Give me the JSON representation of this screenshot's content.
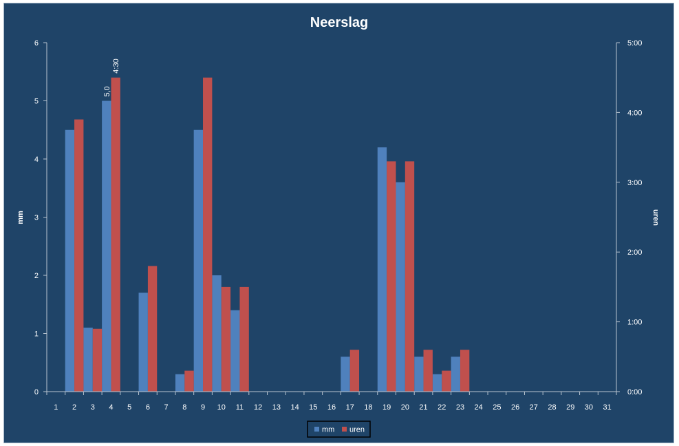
{
  "chart_data": {
    "type": "bar",
    "title": "Neerslag",
    "categories": [
      "1",
      "2",
      "3",
      "4",
      "5",
      "6",
      "7",
      "8",
      "9",
      "10",
      "11",
      "12",
      "13",
      "14",
      "15",
      "16",
      "17",
      "18",
      "19",
      "20",
      "21",
      "22",
      "23",
      "24",
      "25",
      "26",
      "27",
      "28",
      "29",
      "30",
      "31"
    ],
    "series": [
      {
        "name": "mm",
        "axis": "left",
        "color": "#4f81bd",
        "values": [
          0,
          4.5,
          1.1,
          5.0,
          0,
          1.7,
          0,
          0.3,
          4.5,
          2.0,
          1.4,
          0,
          0,
          0,
          0,
          0,
          0.6,
          0,
          4.2,
          3.6,
          0.6,
          0.3,
          0.6,
          0,
          0,
          0,
          0,
          0,
          0,
          0,
          0
        ]
      },
      {
        "name": "uren",
        "axis": "right",
        "unit": "hours",
        "color": "#c0504d",
        "values": [
          0,
          3.9,
          0.9,
          4.5,
          0,
          1.8,
          0,
          0.3,
          4.5,
          1.5,
          1.5,
          0,
          0,
          0,
          0,
          0,
          0.6,
          0,
          3.3,
          3.3,
          0.6,
          0.3,
          0.6,
          0,
          0,
          0,
          0,
          0,
          0,
          0,
          0
        ]
      }
    ],
    "left_axis": {
      "label": "mm",
      "range": [
        0,
        6
      ],
      "ticks": [
        "0",
        "1",
        "2",
        "3",
        "4",
        "5",
        "6"
      ]
    },
    "right_axis": {
      "label": "uren",
      "range_hours": [
        0,
        5
      ],
      "ticks": [
        "0:00",
        "1:00",
        "2:00",
        "3:00",
        "4:00",
        "5:00"
      ]
    },
    "data_labels": [
      {
        "series": "mm",
        "category": "4",
        "text": "5,0"
      },
      {
        "series": "uren",
        "category": "4",
        "text": "4:30"
      }
    ],
    "grid": false,
    "legend": {
      "position": "bottom",
      "entries": [
        "mm",
        "uren"
      ]
    },
    "background": "#1f4468"
  }
}
